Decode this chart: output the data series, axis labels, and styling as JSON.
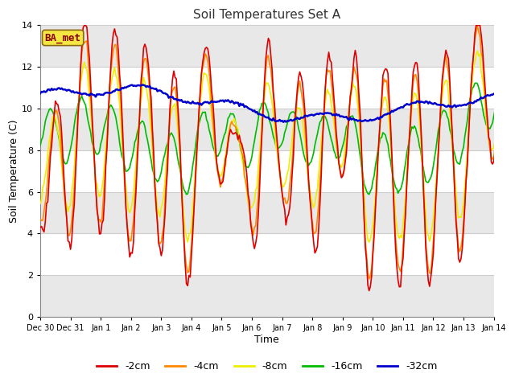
{
  "title": "Soil Temperatures Set A",
  "xlabel": "Time",
  "ylabel": "Soil Temperature (C)",
  "annotation": "BA_met",
  "ylim": [
    0,
    14
  ],
  "yticks": [
    0,
    2,
    4,
    6,
    8,
    10,
    12,
    14
  ],
  "background_color": "#ffffff",
  "plot_bg_color": "#ffffff",
  "grid_color": "#cccccc",
  "band_colors": [
    "#e8e8e8",
    "#ffffff"
  ],
  "series": {
    "-2cm": {
      "color": "#dd0000",
      "lw": 1.2
    },
    "-4cm": {
      "color": "#ff8800",
      "lw": 1.2
    },
    "-8cm": {
      "color": "#eeee00",
      "lw": 1.2
    },
    "-16cm": {
      "color": "#00bb00",
      "lw": 1.2
    },
    "-32cm": {
      "color": "#0000cc",
      "lw": 1.8
    }
  },
  "x_tick_labels": [
    "Dec 30",
    "Dec 31",
    "Jan 1",
    "Jan 2",
    "Jan 3",
    "Jan 4",
    "Jan 5",
    "Jan 6",
    "Jan 7",
    "Jan 8",
    "Jan 9",
    "Jan 10",
    "Jan 11",
    "Jan 12",
    "Jan 13",
    "Jan 14"
  ],
  "figsize": [
    6.4,
    4.8
  ],
  "dpi": 100
}
